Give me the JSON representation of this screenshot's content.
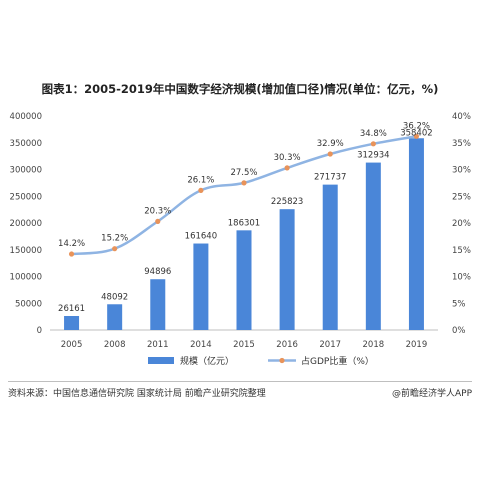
{
  "chart_data": {
    "type": "bar",
    "title": "图表1：2005-2019年中国数字经济规模(增加值口径)情况(单位：亿元，%)",
    "categories": [
      "2005",
      "2008",
      "2011",
      "2014",
      "2015",
      "2016",
      "2017",
      "2018",
      "2019"
    ],
    "series": [
      {
        "name": "规模（亿元）",
        "type": "bar",
        "axis": "left",
        "color": "#4a86d8",
        "values": [
          26161,
          48092,
          94896,
          161640,
          186301,
          225823,
          271737,
          312934,
          358402
        ],
        "labels": [
          "26161",
          "48092",
          "94896",
          "161640",
          "186301",
          "225823",
          "271737",
          "312934",
          "358402"
        ]
      },
      {
        "name": "占GDP比重（%）",
        "type": "line",
        "axis": "right",
        "color": "#8fb4e3",
        "marker_color": "#e8935a",
        "values": [
          14.2,
          15.2,
          20.3,
          26.1,
          27.5,
          30.3,
          32.9,
          34.8,
          36.2
        ],
        "labels": [
          "14.2%",
          "15.2%",
          "20.3%",
          "26.1%",
          "27.5%",
          "30.3%",
          "32.9%",
          "34.8%",
          "36.2%"
        ]
      }
    ],
    "y_left": {
      "range": [
        0,
        400000
      ],
      "ticks": [
        "0",
        "50000",
        "100000",
        "150000",
        "200000",
        "250000",
        "300000",
        "350000",
        "400000"
      ]
    },
    "y_right": {
      "range": [
        0,
        40
      ],
      "ticks": [
        "0%",
        "5%",
        "10%",
        "15%",
        "20%",
        "25%",
        "30%",
        "35%",
        "40%"
      ]
    },
    "grid": false,
    "legend_position": "bottom"
  },
  "footer": {
    "source": "资料来源：中国信息通信研究院 国家统计局 前瞻产业研究院整理",
    "brand": "@前瞻经济学人APP"
  }
}
